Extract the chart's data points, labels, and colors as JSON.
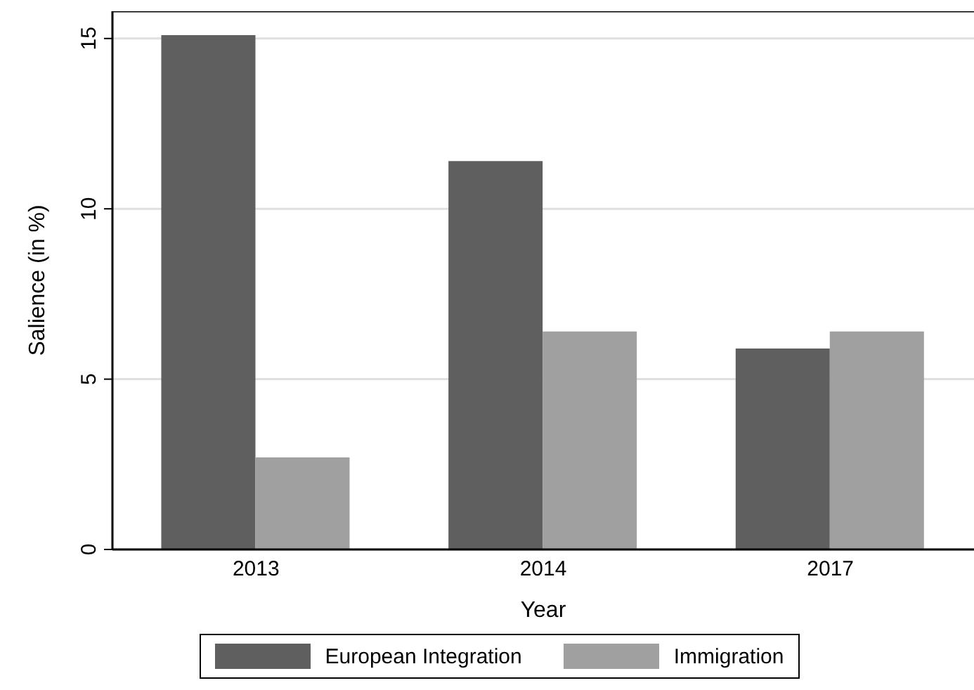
{
  "chart_data": {
    "type": "bar",
    "xlabel": "Year",
    "ylabel": "Salience (in %)",
    "categories": [
      "2013",
      "2014",
      "2017"
    ],
    "series": [
      {
        "name": "European Integration",
        "color": "#5f5f5f",
        "values": [
          15.1,
          11.4,
          5.9
        ]
      },
      {
        "name": "Immigration",
        "color": "#a0a0a0",
        "values": [
          2.7,
          6.4,
          6.4
        ]
      }
    ],
    "ylim": [
      0,
      15.8
    ],
    "yticks": [
      0,
      5,
      10,
      15
    ],
    "grid": "y",
    "legend": "bottom"
  }
}
